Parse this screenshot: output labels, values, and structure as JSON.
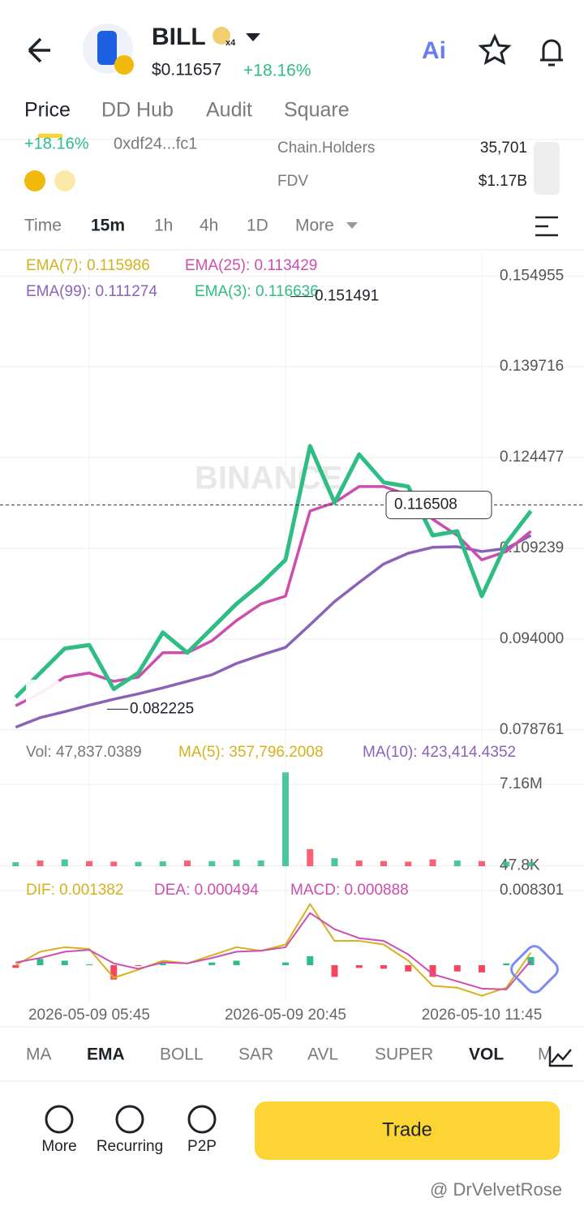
{
  "header": {
    "symbol": "BILL",
    "badge": "x4",
    "price": "$0.11657",
    "change": "+18.16%",
    "ai": "Ai"
  },
  "tabs": [
    "Price",
    "DD Hub",
    "Audit",
    "Square"
  ],
  "info": {
    "change": "+18.16%",
    "address": "0xdf24...fc1",
    "stats": [
      {
        "label": "Chain.Holders",
        "value": "35,701"
      },
      {
        "label": "FDV",
        "value": "$1.17B"
      }
    ]
  },
  "intervals": [
    "Time",
    "15m",
    "1h",
    "4h",
    "1D",
    "More"
  ],
  "watermark": "BINANCE",
  "chart_data": [
    {
      "type": "line",
      "legend": [
        {
          "text": "EMA(7): 0.115986",
          "color": "#d4b21c"
        },
        {
          "text": "EMA(25): 0.113429",
          "color": "#cc4fb0"
        },
        {
          "text": "EMA(99): 0.111274",
          "color": "#8a63b8"
        },
        {
          "text": "EMA(3): 0.116636",
          "color": "#2ebd85"
        }
      ],
      "categories": [
        null,
        null,
        null,
        "2026-05-09 05:45",
        null,
        null,
        null,
        null,
        null,
        null,
        null,
        "2026-05-09 20:45",
        null,
        null,
        null,
        null,
        null,
        null,
        null,
        "2026-05-10 11:45",
        null,
        null
      ],
      "series": [
        {
          "color": "#8a63b8",
          "values": [
            0.0792,
            0.0808,
            0.0818,
            0.0829,
            0.0839,
            0.0848,
            0.0858,
            0.0869,
            0.088,
            0.0899,
            0.0913,
            0.0926,
            0.0964,
            0.1003,
            0.1035,
            0.1066,
            0.1084,
            0.1094,
            0.1095,
            0.1087,
            0.1092,
            0.1114
          ]
        },
        {
          "color": "#cc4fb0",
          "values": [
            0.0828,
            0.0849,
            0.0876,
            0.0883,
            0.0869,
            0.0876,
            0.0917,
            0.0917,
            0.0937,
            0.0971,
            0.0999,
            0.1012,
            0.1155,
            0.1169,
            0.1196,
            0.1196,
            0.1182,
            0.1141,
            0.1114,
            0.1073,
            0.1087,
            0.1121
          ]
        },
        {
          "color": "#2ebd85",
          "values": [
            0.0842,
            0.0883,
            0.0924,
            0.093,
            0.0856,
            0.0883,
            0.0951,
            0.0917,
            0.0958,
            0.0999,
            0.1033,
            0.1073,
            0.1264,
            0.1169,
            0.125,
            0.1203,
            0.1196,
            0.1114,
            0.1121,
            0.1012,
            0.1101,
            0.1155
          ]
        }
      ],
      "ylim": [
        0.0771,
        0.1588
      ],
      "yticks": [
        0.154955,
        0.139716,
        0.124477,
        0.109239,
        {
          "value": 0.094,
          "label": "0.094000"
        },
        0.078761
      ],
      "high": 0.151491,
      "low": 0.082225,
      "last": 0.116508
    },
    {
      "type": "bar",
      "legend": [
        {
          "text": "Vol: 47,837.0389",
          "color": "#777777"
        },
        {
          "text": "MA(5): 357,796.2008",
          "color": "#d4b21c"
        },
        {
          "text": "MA(10): 423,414.4352",
          "color": "#8a63b8"
        }
      ],
      "values": [
        350000,
        500000,
        600000,
        450000,
        400000,
        380000,
        420000,
        500000,
        450000,
        550000,
        500000,
        8200000,
        1500000,
        700000,
        500000,
        450000,
        400000,
        600000,
        500000,
        450000,
        400000,
        350000
      ],
      "colors": [
        "#2ebd85",
        "#f6465d",
        "#2ebd85",
        "#f6465d",
        "#f6465d",
        "#2ebd85",
        "#2ebd85",
        "#f6465d",
        "#2ebd85",
        "#2ebd85",
        "#2ebd85",
        "#2ebd85",
        "#f6465d",
        "#2ebd85",
        "#f6465d",
        "#f6465d",
        "#f6465d",
        "#f6465d",
        "#2ebd85",
        "#f6465d",
        "#2ebd85",
        "#2ebd85"
      ],
      "ylim": [
        0,
        9070000
      ],
      "yticks": [
        {
          "value": 7160000,
          "label": "7.16M"
        },
        {
          "value": 47800,
          "label": "47.8K"
        }
      ]
    },
    {
      "type": "macd",
      "legend": [
        {
          "text": "DIF: 0.001382",
          "color": "#d4b21c"
        },
        {
          "text": "DEA: 0.000494",
          "color": "#cc4fb0"
        },
        {
          "text": "MACD: 0.000888",
          "color": "#cc4fb0"
        }
      ],
      "dif": [
        0,
        0.0015,
        0.002,
        0.0018,
        -0.0014,
        -0.0005,
        0.0005,
        0.0002,
        0.0011,
        0.002,
        0.0016,
        0.0023,
        0.0068,
        0.0027,
        0.0027,
        0.0023,
        0.0005,
        -0.0023,
        -0.0025,
        -0.0034,
        -0.0025,
        0.0014
      ],
      "dea": [
        0.0003,
        0.0008,
        0.0015,
        0.0017,
        0.0002,
        -0.0004,
        0.0003,
        0.0002,
        0.0008,
        0.0015,
        0.0016,
        0.002,
        0.0058,
        0.004,
        0.003,
        0.0027,
        0.0012,
        -0.001,
        -0.0018,
        -0.0026,
        -0.0027,
        0.0005
      ],
      "hist": [
        -0.0003,
        0.0007,
        0.0005,
        0.0001,
        -0.0016,
        -0.0001,
        0.0002,
        0,
        0.0003,
        0.0005,
        0,
        0.0003,
        0.001,
        -0.0013,
        -0.0003,
        -0.0004,
        -0.0007,
        -0.0013,
        -0.0007,
        -0.0008,
        0.0002,
        0.0009
      ],
      "ylim": [
        -0.00406,
        0.00947
      ],
      "yticks": [
        0.008301
      ]
    }
  ],
  "indicators": [
    "MA",
    "EMA",
    "BOLL",
    "SAR",
    "AVL",
    "SUPER",
    "VOL",
    "M"
  ],
  "actions": [
    "More",
    "Recurring",
    "P2P"
  ],
  "trade": "Trade",
  "credit": "@ DrVelvetRose"
}
